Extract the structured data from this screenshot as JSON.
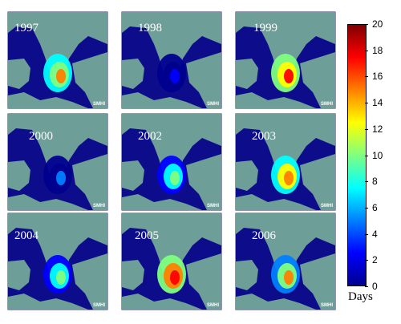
{
  "panels": [
    {
      "year": "1997",
      "intensity": 0.75
    },
    {
      "year": "1998",
      "intensity": 0.15
    },
    {
      "year": "1999",
      "intensity": 0.85
    },
    {
      "year": "2000",
      "intensity": 0.25
    },
    {
      "year": "2002",
      "intensity": 0.55
    },
    {
      "year": "2003",
      "intensity": 0.8
    },
    {
      "year": "2004",
      "intensity": 0.55
    },
    {
      "year": "2005",
      "intensity": 0.9
    },
    {
      "year": "2006",
      "intensity": 0.7
    }
  ],
  "watermark": "SMHI",
  "colorbar": {
    "label": "Days",
    "min": 0,
    "max": 20,
    "ticks": [
      "0",
      "2",
      "4",
      "6",
      "8",
      "10",
      "12",
      "14",
      "16",
      "18",
      "20"
    ],
    "stops": [
      "#00008f",
      "#0000ff",
      "#0080ff",
      "#00ffff",
      "#80ff80",
      "#ffff00",
      "#ff8000",
      "#ff0000",
      "#800000"
    ]
  },
  "colors": {
    "land": "#6d9e97",
    "sea_low": "#0d0c8a"
  }
}
